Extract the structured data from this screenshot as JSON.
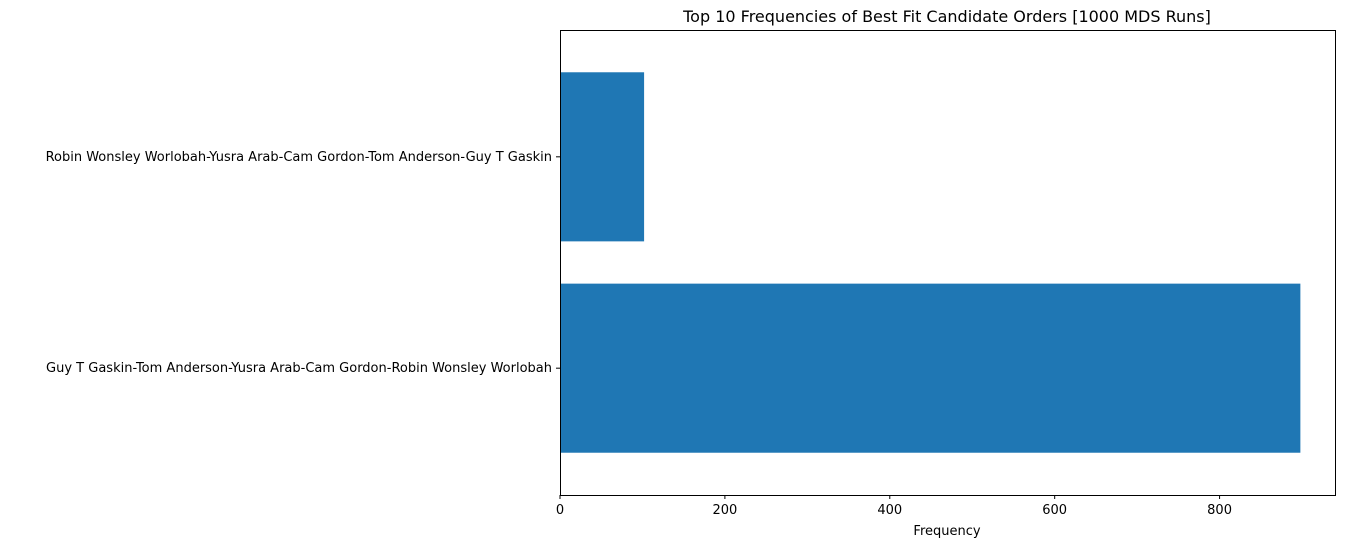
{
  "chart_data": {
    "type": "bar",
    "orientation": "horizontal",
    "title": "Top 10 Frequencies of Best Fit Candidate Orders [1000 MDS Runs]",
    "xlabel": "Frequency",
    "ylabel": "",
    "categories": [
      "Guy T Gaskin-Tom Anderson-Yusra Arab-Cam Gordon-Robin Wonsley Worlobah",
      "Robin Wonsley Worlobah-Yusra Arab-Cam Gordon-Tom Anderson-Guy T Gaskin"
    ],
    "values": [
      898,
      102
    ],
    "xlim": [
      0,
      940
    ],
    "xticks": [
      0,
      200,
      400,
      600,
      800
    ],
    "grid": false,
    "bar_color": "#1f77b4"
  }
}
